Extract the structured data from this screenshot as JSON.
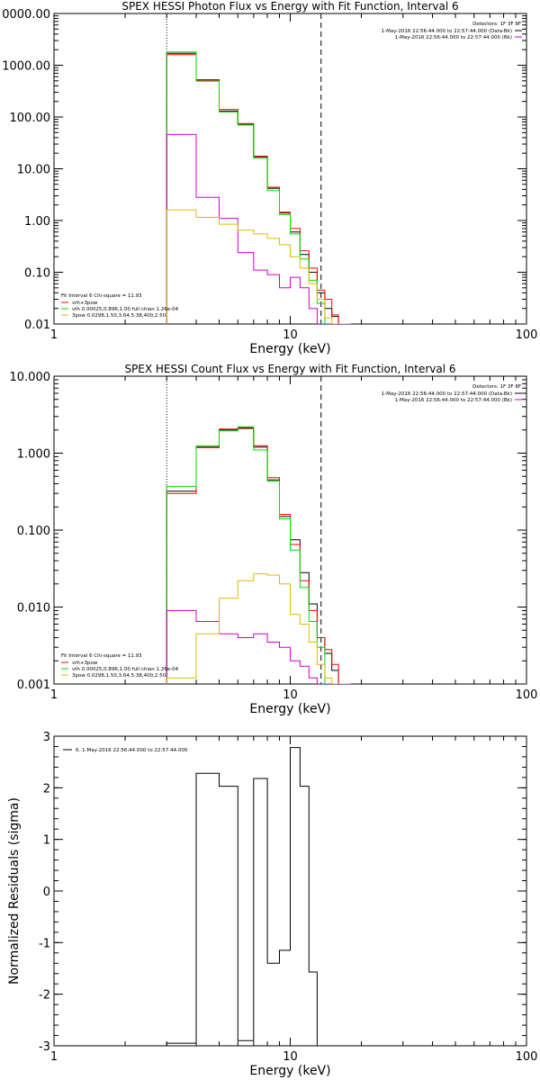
{
  "chart_data": [
    {
      "type": "line",
      "title": "SPEX HESSI Photon Flux vs Energy with Fit Function, Interval 6",
      "xlabel": "Energy (keV)",
      "ylabel": "",
      "xscale": "log",
      "yscale": "log",
      "xlim": [
        1,
        100
      ],
      "ylim": [
        0.01,
        10000
      ],
      "x_ticks": [
        "1",
        "10",
        "100"
      ],
      "y_ticks": [
        "0.01",
        "0.10",
        "1.00",
        "10.00",
        "100.00",
        "1000.00",
        "0000.00"
      ],
      "vlines": [
        {
          "x": 3,
          "style": "dotted"
        },
        {
          "x": 13.5,
          "style": "dashed"
        }
      ],
      "legend_top": {
        "header": "Detectors: 1F 3F 8F",
        "entries": [
          {
            "text": "1-May-2016 22:56:44.000 to 22:57:44.000 (Data-Bk)",
            "color": "#000000"
          },
          {
            "text": "1-May-2016 22:56:44.000 to 22:57:44.000 (Bk)",
            "color": "#cc00cc"
          }
        ]
      },
      "legend_bottom": {
        "header": "Fit Interval 6   Chi-square = 11.93",
        "entries": [
          {
            "text": "vth+3pow",
            "color": "#ff0000"
          },
          {
            "text": "vth 0.00025,0.896,1.00 full chian 1.26e-04",
            "color": "#00dd00"
          },
          {
            "text": "3pow 0.0298,1.50,3.64,5.38,400,2.50",
            "color": "#ddbb00"
          }
        ]
      },
      "edges": [
        3,
        4,
        5,
        6,
        7,
        8,
        9,
        10,
        11,
        12,
        13,
        14,
        15,
        16,
        18
      ],
      "series": [
        {
          "color": "#000000",
          "values": [
            1700,
            520,
            130,
            72,
            17,
            4.2,
            1.4,
            0.6,
            0.22,
            0.1,
            0.04,
            0.02,
            0.014,
            0.01
          ]
        },
        {
          "color": "#ff0000",
          "values": [
            1600,
            500,
            140,
            75,
            17.5,
            4.4,
            1.45,
            0.7,
            0.26,
            0.12,
            0.045,
            0.03,
            0.015,
            0.01
          ]
        },
        {
          "color": "#00dd00",
          "values": [
            1800,
            490,
            125,
            70,
            16,
            3.8,
            1.3,
            0.55,
            0.18,
            0.07,
            0.025,
            0.01,
            0.01,
            0.01
          ]
        },
        {
          "color": "#cc00cc",
          "values": [
            46,
            2.8,
            1.1,
            0.24,
            0.11,
            0.09,
            0.05,
            0.08,
            0.05,
            0.02,
            0.01,
            0.01,
            0.01,
            0.01
          ]
        },
        {
          "color": "#ddbb00",
          "values": [
            1.6,
            1.15,
            0.85,
            0.65,
            0.55,
            0.45,
            0.34,
            0.2,
            0.12,
            0.06,
            0.03,
            0.013,
            0.01,
            0.01
          ]
        }
      ]
    },
    {
      "type": "line",
      "title": "SPEX HESSI Count Flux vs Energy with Fit Function, Interval 6",
      "xlabel": "Energy (keV)",
      "ylabel": "",
      "xscale": "log",
      "yscale": "log",
      "xlim": [
        1,
        100
      ],
      "ylim": [
        0.001,
        10
      ],
      "x_ticks": [
        "1",
        "10",
        "100"
      ],
      "y_ticks": [
        "0.001",
        "0.010",
        "0.100",
        "1.000",
        "10.000"
      ],
      "vlines": [
        {
          "x": 3,
          "style": "dotted"
        },
        {
          "x": 13.5,
          "style": "dashed"
        }
      ],
      "legend_top": {
        "header": "Detectors: 1F 3F 8F",
        "entries": [
          {
            "text": "1-May-2016 22:56:44.000 to 22:57:44.000 (Data-Bk)",
            "color": "#000000"
          },
          {
            "text": "1-May-2016 22:56:44.000 to 22:57:44.000 (Bk)",
            "color": "#cc00cc"
          }
        ]
      },
      "legend_bottom": {
        "header": "Fit Interval 6   Chi-square = 11.93",
        "entries": [
          {
            "text": "vth+3pow",
            "color": "#ff0000"
          },
          {
            "text": "vth 0.00025,0.896,1.00 full chian 1.26e-04",
            "color": "#00dd00"
          },
          {
            "text": "3pow 0.0298,1.50,3.64,5.38,400,2.50",
            "color": "#ddbb00"
          }
        ]
      },
      "edges": [
        3,
        4,
        5,
        6,
        7,
        8,
        9,
        10,
        11,
        12,
        13,
        14,
        15,
        16,
        18
      ],
      "series": [
        {
          "color": "#000000",
          "values": [
            0.32,
            1.2,
            2.0,
            2.1,
            1.2,
            0.45,
            0.15,
            0.075,
            0.028,
            0.011,
            0.004,
            0.0025,
            0.0015,
            0.001
          ]
        },
        {
          "color": "#ff0000",
          "values": [
            0.3,
            1.18,
            2.05,
            2.15,
            1.25,
            0.48,
            0.16,
            0.065,
            0.022,
            0.009,
            0.004,
            0.0028,
            0.0018,
            0.001
          ]
        },
        {
          "color": "#00dd00",
          "values": [
            0.37,
            1.25,
            1.95,
            2.2,
            1.1,
            0.43,
            0.14,
            0.055,
            0.018,
            0.0065,
            0.003,
            0.001,
            0.001,
            0.001
          ]
        },
        {
          "color": "#cc00cc",
          "values": [
            0.009,
            0.0065,
            0.0045,
            0.004,
            0.0045,
            0.0035,
            0.003,
            0.002,
            0.0017,
            0.0012,
            0.001,
            0.001,
            0.001,
            0.001
          ]
        },
        {
          "color": "#ddbb00",
          "values": [
            0.0012,
            0.0045,
            0.013,
            0.022,
            0.027,
            0.026,
            0.02,
            0.008,
            0.006,
            0.0035,
            0.0018,
            0.0012,
            0.001,
            0.001
          ]
        }
      ]
    },
    {
      "type": "line",
      "title": "",
      "xlabel": "Energy (keV)",
      "ylabel": "Normalized Residuals (sigma)",
      "xscale": "log",
      "yscale": "linear",
      "xlim": [
        1,
        100
      ],
      "ylim": [
        -3,
        3
      ],
      "x_ticks": [
        "1",
        "10",
        "100"
      ],
      "y_ticks": [
        "-3",
        "-2",
        "-1",
        "0",
        "1",
        "2",
        "3"
      ],
      "legend": [
        {
          "text": "6. 1-May-2016 22:56:44.000 to 22:57:44.000",
          "color": "#000000"
        }
      ],
      "edges": [
        3,
        4,
        5,
        6,
        7,
        8,
        9,
        10,
        11,
        12,
        13
      ],
      "series": [
        {
          "color": "#000000",
          "values": [
            -2.95,
            2.28,
            2.03,
            -2.9,
            2.18,
            -1.4,
            -1.15,
            2.78,
            2.03,
            -1.57
          ]
        }
      ]
    }
  ]
}
